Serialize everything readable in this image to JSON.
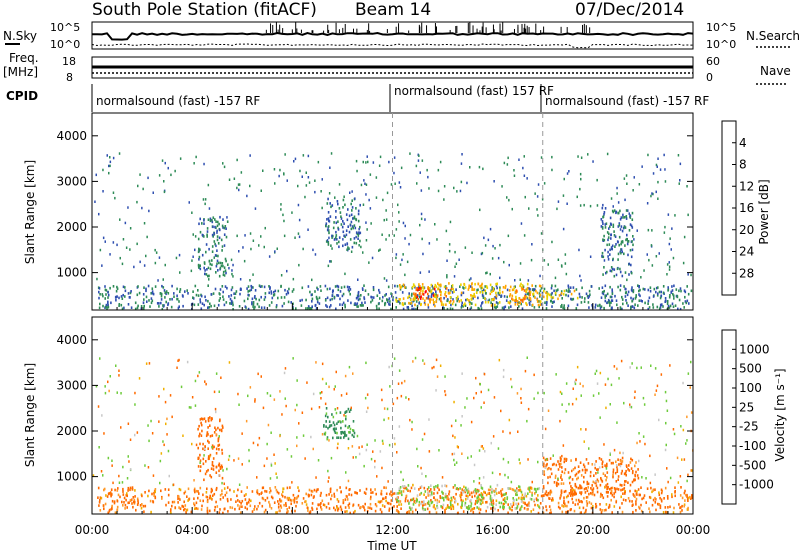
{
  "header": {
    "station": "South Pole Station (fitACF)",
    "beam": "Beam 14",
    "date": "07/Dec/2014"
  },
  "top_panels": {
    "nsky_label": "N.Sky",
    "nsearch_label": "N.Search",
    "nsky_ticks": [
      "10^5",
      "10^0"
    ],
    "nsearch_ticks": [
      "10^5",
      "10^0"
    ],
    "freq_label": "Freq.",
    "freq_unit": "[MHz]",
    "freq_ticks": [
      "18",
      "8"
    ],
    "nave_label": "Nave",
    "nave_ticks": [
      "60",
      "0"
    ],
    "cpid_label": "CPID",
    "cpid_segments": [
      {
        "start_hour": 0.0,
        "end_hour": 12.0,
        "label": "normalsound (fast) -157 RF"
      },
      {
        "start_hour": 12.0,
        "end_hour": 18.0,
        "label": "normalsound (fast) 157 RF"
      },
      {
        "start_hour": 18.0,
        "end_hour": 24.0,
        "label": "normalsound (fast) -157 RF"
      }
    ]
  },
  "chart_data": [
    {
      "type": "heatmap",
      "title": "",
      "xlabel": "Time UT",
      "ylabel": "Slant Range [km]",
      "xlim": [
        0,
        24
      ],
      "ylim": [
        180,
        4500
      ],
      "x_tick_labels": [
        "00:00",
        "04:00",
        "08:00",
        "12:00",
        "16:00",
        "20:00",
        "00:00"
      ],
      "y_ticks": [
        1000,
        2000,
        3000,
        4000
      ],
      "y_tick_labels": [
        "1000",
        "2000",
        "3000",
        "4000"
      ],
      "colorbar": {
        "label": "Power [dB]",
        "range": [
          0,
          30
        ],
        "ticks": [
          "4",
          "8",
          "12",
          "16",
          "20",
          "24",
          "28"
        ]
      },
      "regions": [
        {
          "t0": 0.2,
          "t1": 24.0,
          "r0": 180,
          "r1": 700,
          "value": 8
        },
        {
          "t0": 12.1,
          "t1": 17.9,
          "r0": 250,
          "r1": 750,
          "value": 20
        },
        {
          "t0": 12.8,
          "t1": 14.4,
          "r0": 350,
          "r1": 650,
          "value": 27
        },
        {
          "t0": 16.5,
          "t1": 17.6,
          "r0": 350,
          "r1": 650,
          "value": 24
        },
        {
          "t0": 18.0,
          "t1": 19.4,
          "r0": 400,
          "r1": 600,
          "value": 20
        },
        {
          "t0": 4.2,
          "t1": 5.4,
          "r0": 900,
          "r1": 2200,
          "value": 9
        },
        {
          "t0": 9.3,
          "t1": 10.7,
          "r0": 1500,
          "r1": 2600,
          "value": 8
        },
        {
          "t0": 20.3,
          "t1": 21.6,
          "r0": 900,
          "r1": 2400,
          "value": 8
        }
      ]
    },
    {
      "type": "heatmap",
      "title": "",
      "xlabel": "Time UT",
      "ylabel": "Slant Range [km]",
      "xlim": [
        0,
        24
      ],
      "ylim": [
        180,
        4500
      ],
      "x_tick_labels": [
        "00:00",
        "04:00",
        "08:00",
        "12:00",
        "16:00",
        "20:00",
        "00:00"
      ],
      "y_ticks": [
        1000,
        2000,
        3000,
        4000
      ],
      "y_tick_labels": [
        "1000",
        "2000",
        "3000",
        "4000"
      ],
      "colorbar": {
        "label": "Velocity [m s⁻¹]",
        "range": [
          -1200,
          1200
        ],
        "ticks": [
          "1000",
          "500",
          "100",
          "25",
          "-25",
          "-100",
          "-500",
          "-1000"
        ]
      },
      "regions": [
        {
          "t0": 0.2,
          "t1": 24.0,
          "r0": 180,
          "r1": 750,
          "value": -150
        },
        {
          "t0": 12.1,
          "t1": 17.9,
          "r0": 250,
          "r1": 800,
          "value": 120
        },
        {
          "t0": 18.0,
          "t1": 21.8,
          "r0": 600,
          "r1": 1400,
          "value": -200
        },
        {
          "t0": 4.2,
          "t1": 5.2,
          "r0": 900,
          "r1": 2300,
          "value": -300
        },
        {
          "t0": 9.2,
          "t1": 10.5,
          "r0": 1800,
          "r1": 2500,
          "value": 600
        }
      ]
    }
  ],
  "colors": {
    "power_scale": [
      "#0000ff",
      "#2f4fb0",
      "#2e8b57",
      "#7fc04d",
      "#e8d200",
      "#ffa500",
      "#ff7000",
      "#ff0000"
    ],
    "velocity_scale": [
      "#ff0000",
      "#ff6a00",
      "#ff9a2a",
      "#f0b000",
      "#c8c8c8",
      "#6ecb3c",
      "#2e8b57",
      "#2f4fb0",
      "#0000cc"
    ]
  }
}
